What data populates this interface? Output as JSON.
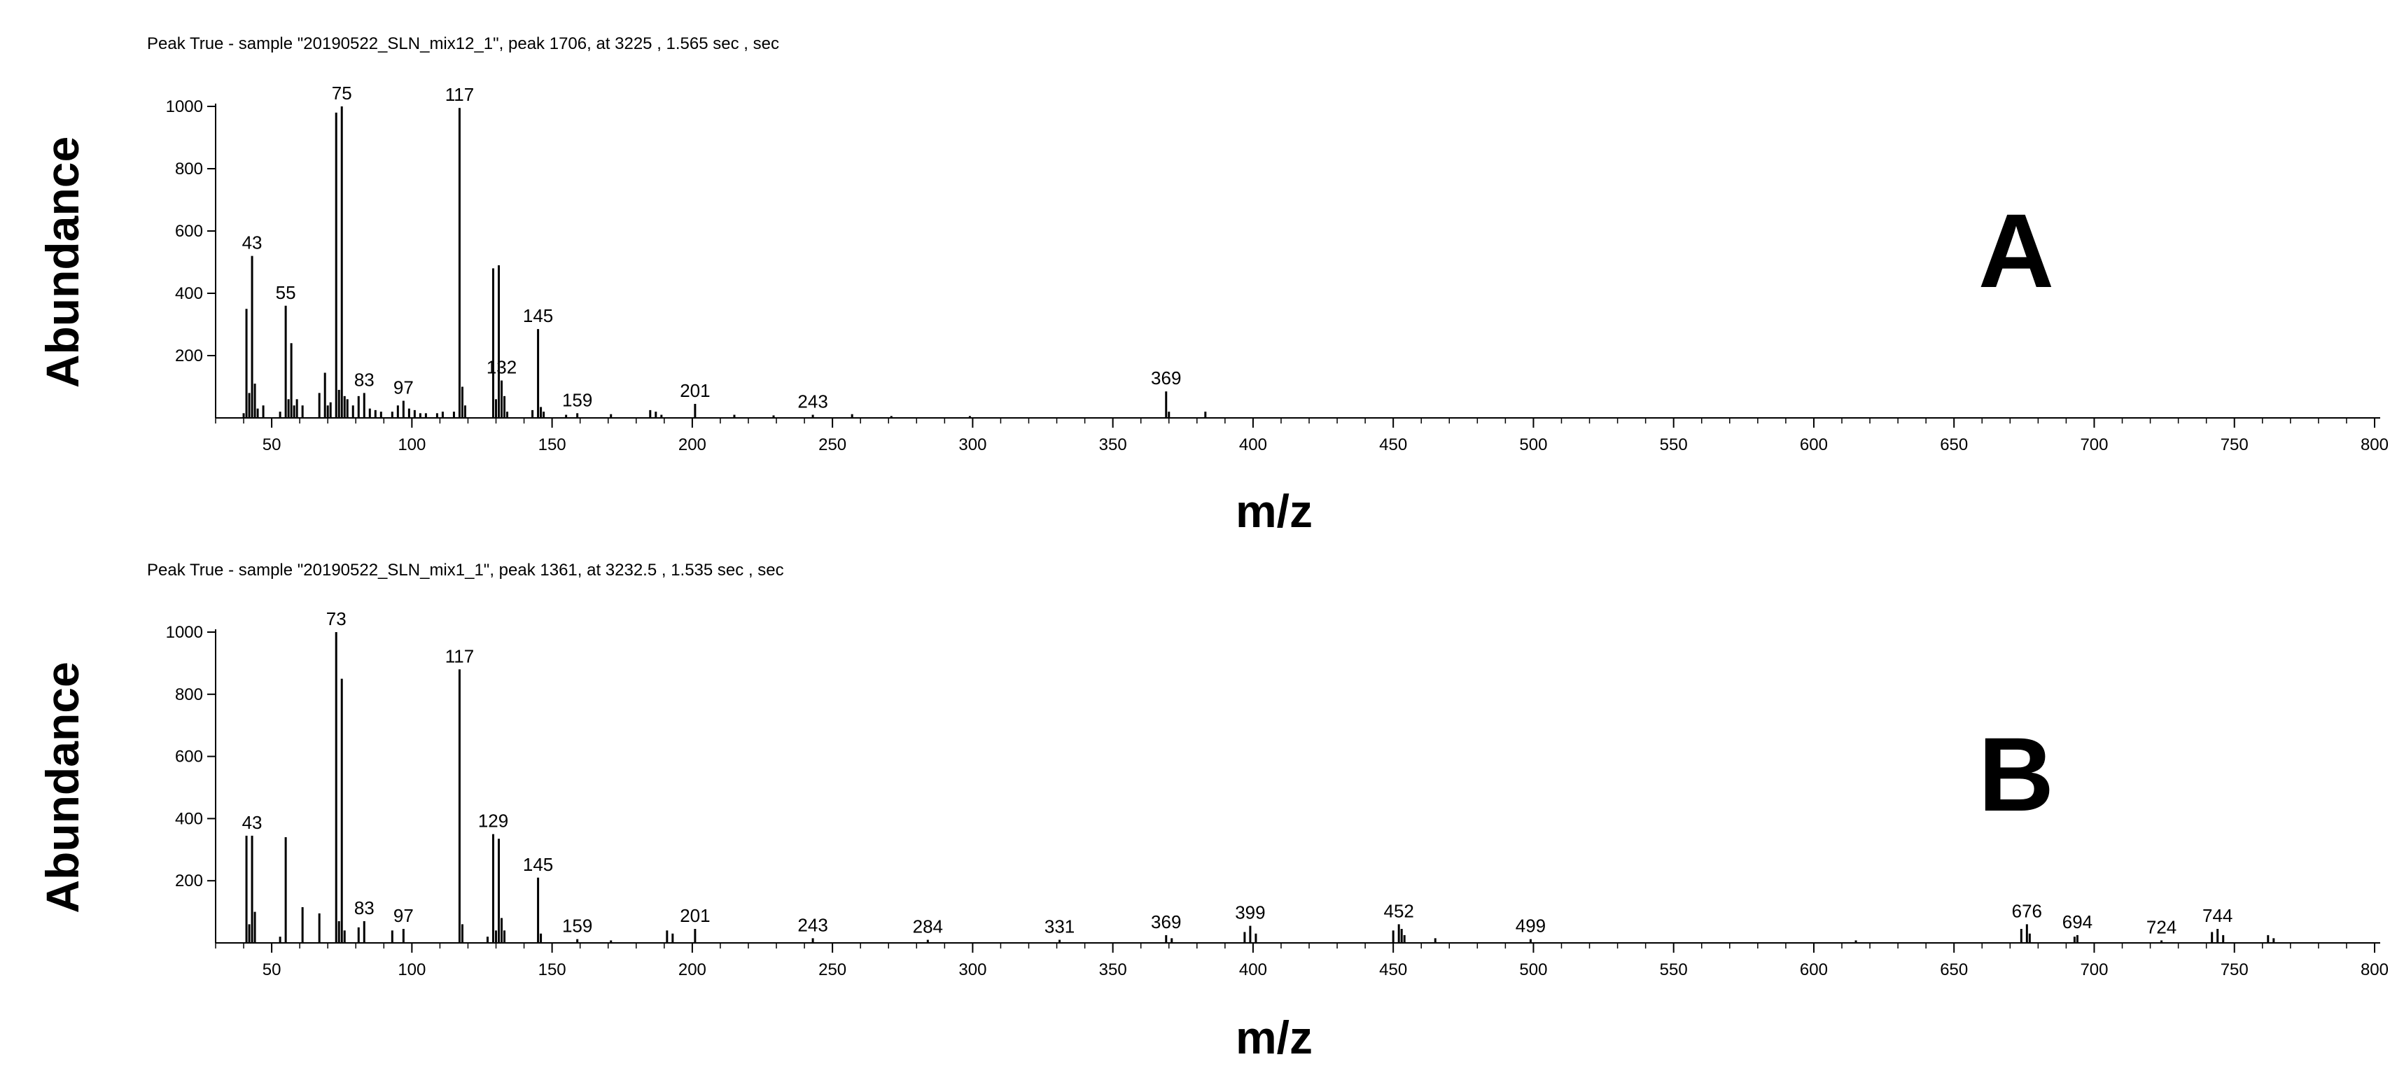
{
  "chart_data": [
    {
      "type": "bar",
      "caption": "Peak True - sample \"20190522_SLN_mix12_1\", peak 1706, at 3225 , 1.565 sec , sec",
      "panel_label": "A",
      "xlabel": "m/z",
      "ylabel": "Abundance",
      "xlim": [
        30,
        802
      ],
      "ylim": [
        0,
        1000
      ],
      "x_ticks": [
        50,
        100,
        150,
        200,
        250,
        300,
        350,
        400,
        450,
        500,
        550,
        600,
        650,
        700,
        750,
        800
      ],
      "y_ticks": [
        200,
        400,
        600,
        800,
        1000
      ],
      "peak_labels": [
        43,
        55,
        75,
        83,
        97,
        117,
        132,
        145,
        159,
        201,
        243,
        369
      ],
      "peaks": [
        {
          "mz": 40,
          "y": 15
        },
        {
          "mz": 41,
          "y": 350
        },
        {
          "mz": 42,
          "y": 80
        },
        {
          "mz": 43,
          "y": 520
        },
        {
          "mz": 44,
          "y": 110
        },
        {
          "mz": 45,
          "y": 30
        },
        {
          "mz": 47,
          "y": 40
        },
        {
          "mz": 53,
          "y": 20
        },
        {
          "mz": 55,
          "y": 360
        },
        {
          "mz": 56,
          "y": 60
        },
        {
          "mz": 57,
          "y": 240
        },
        {
          "mz": 58,
          "y": 40
        },
        {
          "mz": 59,
          "y": 60
        },
        {
          "mz": 61,
          "y": 40
        },
        {
          "mz": 67,
          "y": 80
        },
        {
          "mz": 69,
          "y": 145
        },
        {
          "mz": 70,
          "y": 40
        },
        {
          "mz": 71,
          "y": 50
        },
        {
          "mz": 73,
          "y": 980
        },
        {
          "mz": 74,
          "y": 90
        },
        {
          "mz": 75,
          "y": 1000
        },
        {
          "mz": 76,
          "y": 70
        },
        {
          "mz": 77,
          "y": 60
        },
        {
          "mz": 79,
          "y": 40
        },
        {
          "mz": 81,
          "y": 70
        },
        {
          "mz": 83,
          "y": 80
        },
        {
          "mz": 85,
          "y": 30
        },
        {
          "mz": 87,
          "y": 25
        },
        {
          "mz": 89,
          "y": 20
        },
        {
          "mz": 93,
          "y": 20
        },
        {
          "mz": 95,
          "y": 40
        },
        {
          "mz": 97,
          "y": 55
        },
        {
          "mz": 99,
          "y": 30
        },
        {
          "mz": 101,
          "y": 25
        },
        {
          "mz": 103,
          "y": 15
        },
        {
          "mz": 105,
          "y": 15
        },
        {
          "mz": 109,
          "y": 15
        },
        {
          "mz": 111,
          "y": 20
        },
        {
          "mz": 115,
          "y": 20
        },
        {
          "mz": 117,
          "y": 995
        },
        {
          "mz": 118,
          "y": 100
        },
        {
          "mz": 119,
          "y": 40
        },
        {
          "mz": 129,
          "y": 480
        },
        {
          "mz": 130,
          "y": 60
        },
        {
          "mz": 131,
          "y": 490
        },
        {
          "mz": 132,
          "y": 120
        },
        {
          "mz": 133,
          "y": 70
        },
        {
          "mz": 134,
          "y": 20
        },
        {
          "mz": 143,
          "y": 25
        },
        {
          "mz": 145,
          "y": 285
        },
        {
          "mz": 146,
          "y": 35
        },
        {
          "mz": 147,
          "y": 20
        },
        {
          "mz": 155,
          "y": 10
        },
        {
          "mz": 159,
          "y": 15
        },
        {
          "mz": 171,
          "y": 12
        },
        {
          "mz": 185,
          "y": 25
        },
        {
          "mz": 187,
          "y": 20
        },
        {
          "mz": 189,
          "y": 10
        },
        {
          "mz": 201,
          "y": 45
        },
        {
          "mz": 215,
          "y": 10
        },
        {
          "mz": 229,
          "y": 8
        },
        {
          "mz": 243,
          "y": 10
        },
        {
          "mz": 257,
          "y": 12
        },
        {
          "mz": 271,
          "y": 6
        },
        {
          "mz": 299,
          "y": 6
        },
        {
          "mz": 369,
          "y": 85
        },
        {
          "mz": 370,
          "y": 20
        },
        {
          "mz": 383,
          "y": 20
        }
      ]
    },
    {
      "type": "bar",
      "caption": "Peak True - sample \"20190522_SLN_mix1_1\", peak 1361, at 3232.5 , 1.535 sec , sec",
      "panel_label": "B",
      "xlabel": "m/z",
      "ylabel": "Abundance",
      "xlim": [
        30,
        802
      ],
      "ylim": [
        0,
        1000
      ],
      "x_ticks": [
        50,
        100,
        150,
        200,
        250,
        300,
        350,
        400,
        450,
        500,
        550,
        600,
        650,
        700,
        750,
        800
      ],
      "y_ticks": [
        200,
        400,
        600,
        800,
        1000
      ],
      "peak_labels": [
        43,
        73,
        83,
        97,
        117,
        129,
        145,
        159,
        201,
        243,
        284,
        331,
        369,
        399,
        452,
        499,
        676,
        694,
        724,
        744
      ],
      "peaks": [
        {
          "mz": 41,
          "y": 345
        },
        {
          "mz": 42,
          "y": 60
        },
        {
          "mz": 43,
          "y": 345
        },
        {
          "mz": 44,
          "y": 100
        },
        {
          "mz": 53,
          "y": 20
        },
        {
          "mz": 55,
          "y": 340
        },
        {
          "mz": 61,
          "y": 115
        },
        {
          "mz": 67,
          "y": 95
        },
        {
          "mz": 73,
          "y": 1000
        },
        {
          "mz": 74,
          "y": 70
        },
        {
          "mz": 75,
          "y": 850
        },
        {
          "mz": 76,
          "y": 40
        },
        {
          "mz": 81,
          "y": 50
        },
        {
          "mz": 83,
          "y": 70
        },
        {
          "mz": 93,
          "y": 40
        },
        {
          "mz": 97,
          "y": 45
        },
        {
          "mz": 117,
          "y": 880
        },
        {
          "mz": 118,
          "y": 60
        },
        {
          "mz": 127,
          "y": 20
        },
        {
          "mz": 129,
          "y": 350
        },
        {
          "mz": 130,
          "y": 40
        },
        {
          "mz": 131,
          "y": 335
        },
        {
          "mz": 132,
          "y": 80
        },
        {
          "mz": 133,
          "y": 40
        },
        {
          "mz": 145,
          "y": 210
        },
        {
          "mz": 146,
          "y": 30
        },
        {
          "mz": 159,
          "y": 12
        },
        {
          "mz": 171,
          "y": 8
        },
        {
          "mz": 191,
          "y": 40
        },
        {
          "mz": 193,
          "y": 30
        },
        {
          "mz": 201,
          "y": 45
        },
        {
          "mz": 243,
          "y": 15
        },
        {
          "mz": 284,
          "y": 10
        },
        {
          "mz": 331,
          "y": 10
        },
        {
          "mz": 369,
          "y": 25
        },
        {
          "mz": 371,
          "y": 15
        },
        {
          "mz": 397,
          "y": 35
        },
        {
          "mz": 399,
          "y": 55
        },
        {
          "mz": 401,
          "y": 30
        },
        {
          "mz": 450,
          "y": 40
        },
        {
          "mz": 452,
          "y": 60
        },
        {
          "mz": 453,
          "y": 45
        },
        {
          "mz": 454,
          "y": 25
        },
        {
          "mz": 465,
          "y": 15
        },
        {
          "mz": 499,
          "y": 12
        },
        {
          "mz": 615,
          "y": 8
        },
        {
          "mz": 674,
          "y": 45
        },
        {
          "mz": 676,
          "y": 60
        },
        {
          "mz": 677,
          "y": 30
        },
        {
          "mz": 693,
          "y": 20
        },
        {
          "mz": 694,
          "y": 25
        },
        {
          "mz": 724,
          "y": 8
        },
        {
          "mz": 742,
          "y": 35
        },
        {
          "mz": 744,
          "y": 45
        },
        {
          "mz": 746,
          "y": 25
        },
        {
          "mz": 762,
          "y": 25
        },
        {
          "mz": 764,
          "y": 15
        }
      ]
    }
  ]
}
